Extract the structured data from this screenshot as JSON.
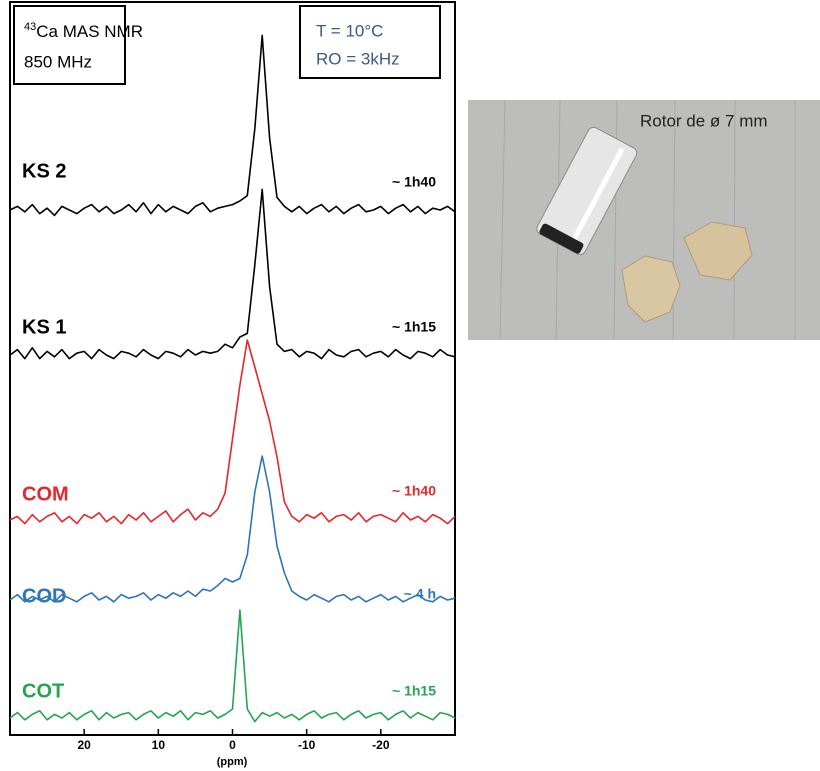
{
  "chart_data": {
    "type": "stacked-spectra",
    "title": {
      "sup": "43",
      "text": "Ca MAS NMR",
      "line2": "850 MHz"
    },
    "conditions": [
      "T = 10°C",
      "RO = 3kHz"
    ],
    "x_label": "(ppm)",
    "xlim": [
      30,
      -30
    ],
    "xticks": [
      20,
      10,
      0,
      -10,
      -20
    ],
    "x": [
      30,
      29,
      28,
      27,
      26,
      25,
      24,
      23,
      22,
      21,
      20,
      19,
      18,
      17,
      16,
      15,
      14,
      13,
      12,
      11,
      10,
      9,
      8,
      7,
      6,
      5,
      4,
      3,
      2,
      1,
      0,
      -1,
      -2,
      -3,
      -4,
      -5,
      -6,
      -7,
      -8,
      -9,
      -10,
      -11,
      -12,
      -13,
      -14,
      -15,
      -16,
      -17,
      -18,
      -19,
      -20,
      -21,
      -22,
      -23,
      -24,
      -25,
      -26,
      -27,
      -28,
      -29,
      -30
    ],
    "series": [
      {
        "name": "KS 2",
        "annotation": "~ 1h40",
        "color": "#000000",
        "values": [
          0,
          0.02,
          -0.01,
          0.03,
          -0.02,
          0.01,
          -0.03,
          0.02,
          0,
          -0.02,
          0.01,
          0.03,
          -0.01,
          0.02,
          -0.02,
          0,
          0.03,
          -0.01,
          0.04,
          -0.02,
          0.03,
          -0.01,
          0.02,
          0,
          -0.02,
          0.02,
          0.04,
          -0.01,
          0.01,
          0.02,
          0.03,
          0.05,
          0.08,
          0.45,
          0.97,
          0.4,
          0.07,
          0.02,
          -0.01,
          0.02,
          -0.02,
          0.01,
          0.03,
          -0.01,
          0.02,
          -0.02,
          0.01,
          0.03,
          -0.01,
          0,
          0.02,
          -0.02,
          0.01,
          0.03,
          -0.01,
          0.02,
          -0.02,
          0.01,
          0,
          0.02,
          -0.01
        ]
      },
      {
        "name": "KS 1",
        "annotation": "~ 1h15",
        "color": "#000000",
        "values": [
          0,
          0.03,
          -0.02,
          0.04,
          -0.02,
          0.02,
          -0.01,
          0.03,
          -0.02,
          0.01,
          0.02,
          -0.02,
          0.03,
          0,
          -0.02,
          0.02,
          0.01,
          -0.01,
          0.03,
          0,
          -0.02,
          0.02,
          0.01,
          -0.01,
          0.03,
          0,
          0.02,
          0.01,
          0.02,
          0.06,
          0.04,
          0.1,
          0.12,
          0.5,
          0.92,
          0.38,
          0.06,
          0.02,
          0.03,
          -0.01,
          0.02,
          0.01,
          -0.02,
          0.03,
          0,
          -0.01,
          0.02,
          0.03,
          -0.01,
          0.01,
          0.02,
          -0.01,
          0.03,
          0,
          -0.02,
          0.02,
          0.01,
          -0.01,
          0.03,
          0,
          -0.01
        ]
      },
      {
        "name": "COM",
        "annotation": "~ 1h40",
        "color": "#e8262b",
        "values": [
          0,
          0.02,
          -0.02,
          0.03,
          -0.01,
          0.02,
          0.04,
          -0.01,
          0.02,
          -0.02,
          0.03,
          0.01,
          0.04,
          -0.01,
          0.02,
          -0.02,
          0.03,
          0,
          0.04,
          -0.01,
          0.02,
          0.05,
          -0.01,
          0.03,
          0.06,
          0,
          0.04,
          0.02,
          0.06,
          0.15,
          0.45,
          0.75,
          1.0,
          0.85,
          0.7,
          0.55,
          0.35,
          0.1,
          0.02,
          -0.01,
          0.03,
          0.01,
          0.04,
          -0.01,
          0.02,
          0.03,
          0,
          0.04,
          -0.01,
          0.02,
          0.03,
          0.01,
          -0.01,
          0.04,
          0,
          0.02,
          -0.01,
          0.03,
          0.01,
          -0.02,
          0.02
        ]
      },
      {
        "name": "COD",
        "annotation": "~ 4 h",
        "color": "#2e75b6",
        "values": [
          0,
          0.03,
          -0.01,
          0.02,
          0,
          0.02,
          -0.01,
          0.03,
          0.01,
          -0.01,
          0.02,
          0.04,
          0,
          0.02,
          -0.01,
          0.03,
          0.01,
          0.02,
          0.04,
          0,
          0.03,
          0.01,
          0.04,
          0.02,
          0.05,
          0.02,
          0.06,
          0.05,
          0.08,
          0.12,
          0.1,
          0.12,
          0.25,
          0.6,
          0.8,
          0.6,
          0.3,
          0.15,
          0.05,
          0.02,
          0,
          0.03,
          0.01,
          -0.01,
          0.02,
          0.03,
          0,
          0.02,
          -0.01,
          0.01,
          0.03,
          0,
          0.02,
          -0.01,
          0.01,
          0.03,
          0,
          -0.01,
          0.02,
          0,
          0.01
        ]
      },
      {
        "name": "COT",
        "annotation": "~ 1h15",
        "color": "#22a650",
        "values": [
          0,
          0.03,
          -0.01,
          0.02,
          0.04,
          -0.01,
          0.02,
          0,
          0.03,
          -0.01,
          0.02,
          0.04,
          -0.01,
          0.03,
          0,
          0.02,
          0.03,
          -0.01,
          0.02,
          0.04,
          0,
          0.03,
          0.01,
          0.04,
          -0.01,
          0.03,
          0.02,
          0.04,
          0,
          0.02,
          0.05,
          0.6,
          0.05,
          -0.02,
          0.03,
          0.01,
          0.03,
          0,
          0.02,
          -0.01,
          0.02,
          0.04,
          0,
          0.02,
          0.03,
          -0.01,
          0.02,
          0.04,
          0,
          0.02,
          0.03,
          -0.01,
          0.02,
          0.04,
          0,
          0.03,
          0.01,
          -0.01,
          0.03,
          0.02,
          0
        ]
      }
    ]
  },
  "photo": {
    "caption": "Rotor de ø 7 mm"
  }
}
